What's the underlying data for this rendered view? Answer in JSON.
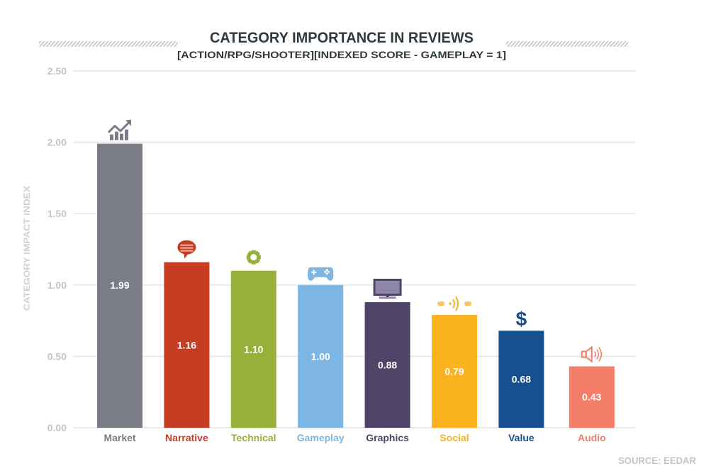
{
  "chart_data": {
    "type": "bar",
    "title": "CATEGORY IMPORTANCE IN REVIEWS",
    "subtitle": "[ACTION/RPG/SHOOTER][INDEXED SCORE - GAMEPLAY = 1]",
    "xlabel": "",
    "ylabel": "CATEGORY IMPACT INDEX",
    "ylim": [
      0,
      2.5
    ],
    "yticks": [
      "0.00",
      "0.50",
      "1.00",
      "1.50",
      "2.00",
      "2.50"
    ],
    "ytick_values": [
      0,
      0.5,
      1,
      1.5,
      2,
      2.5
    ],
    "grid": true,
    "categories": [
      "Market",
      "Narrative",
      "Technical",
      "Gameplay",
      "Graphics",
      "Social",
      "Value",
      "Audio"
    ],
    "values": [
      1.99,
      1.16,
      1.1,
      1.0,
      0.88,
      0.79,
      0.68,
      0.43
    ],
    "value_labels": [
      "1.99",
      "1.16",
      "1.10",
      "1.00",
      "0.88",
      "0.79",
      "0.68",
      "0.43"
    ],
    "colors": [
      "#7a7d85",
      "#c63d23",
      "#97b03a",
      "#7db6e3",
      "#4f4468",
      "#fab21f",
      "#184f8e",
      "#f47e67"
    ],
    "icons": [
      "trend-chart-icon",
      "speech-bubble-icon",
      "gear-icon",
      "gamepad-icon",
      "monitor-icon",
      "multiplayer-signal-icon",
      "dollar-icon",
      "speaker-icon"
    ],
    "source": "SOURCE: EEDAR"
  },
  "style": {
    "grid_color": "#e9eaec",
    "tick_color": "#c3c5c8",
    "title_color": "#2f3a40",
    "hatch_color": "#c9cbce"
  }
}
